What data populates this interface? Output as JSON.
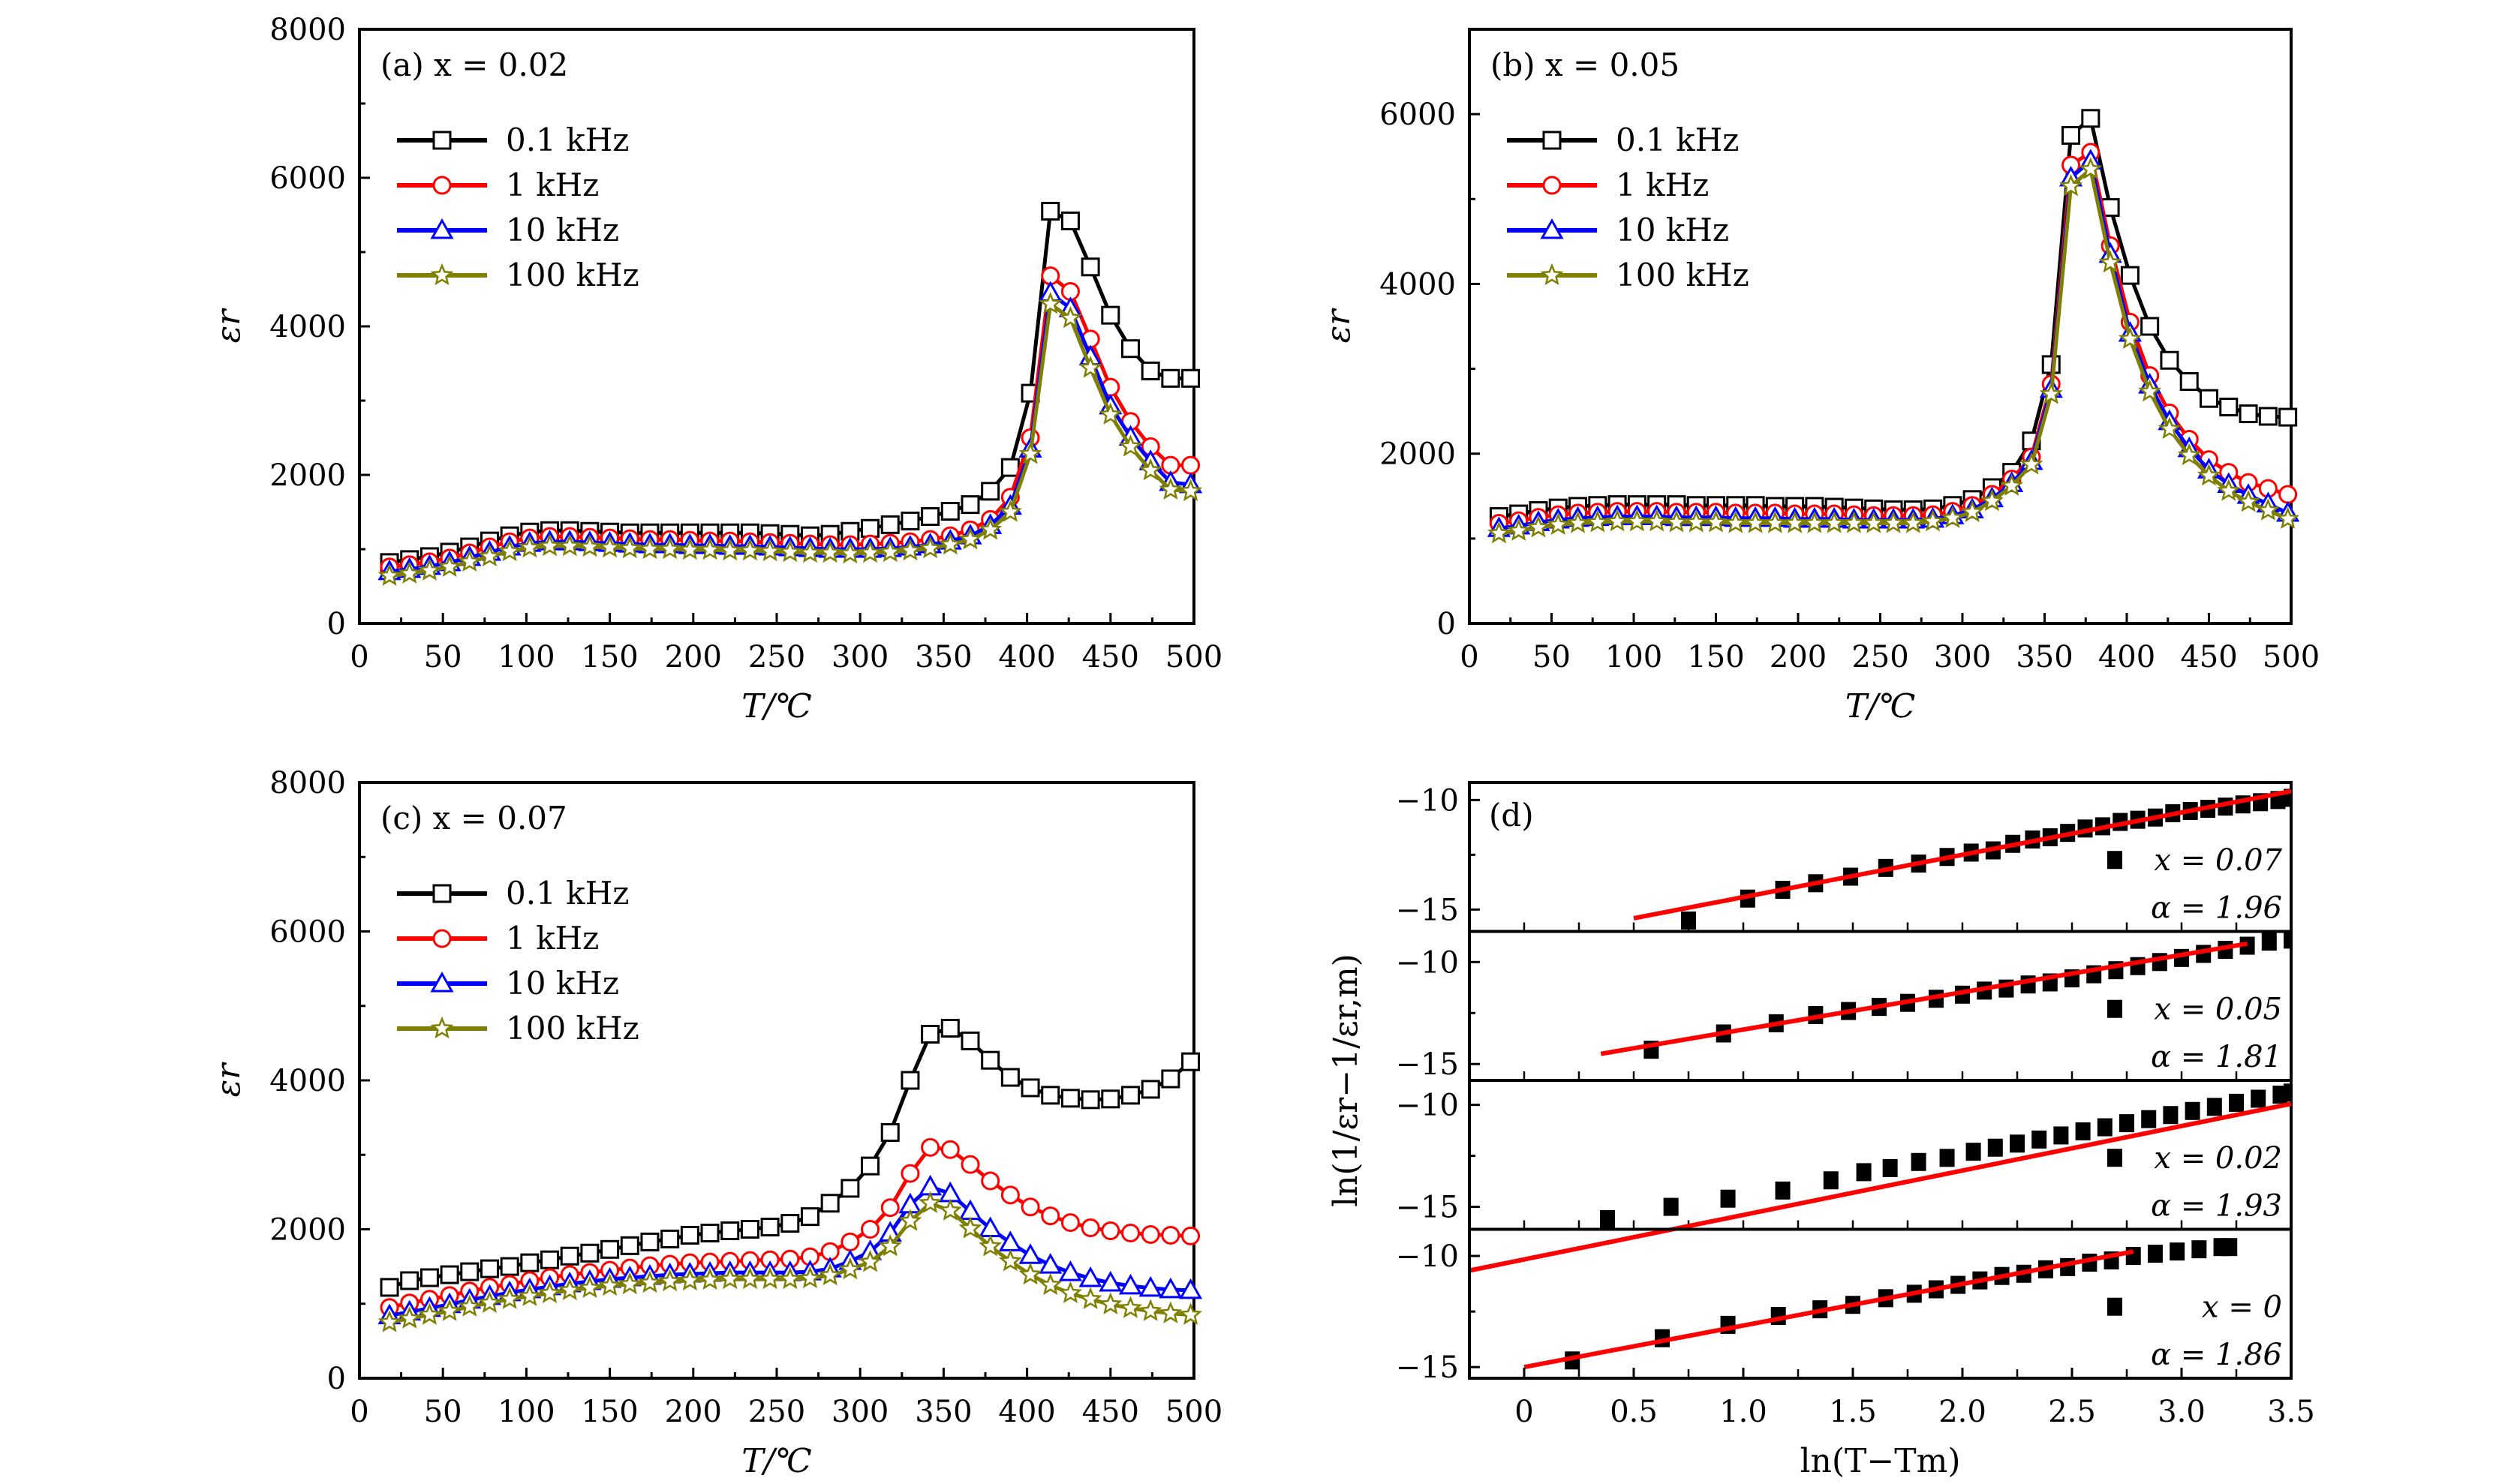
{
  "chart_data": [
    {
      "id": "a",
      "type": "line",
      "panel_label": "(a) x = 0.02",
      "xlabel": "T/℃",
      "ylabel": "εr",
      "xlim": [
        0,
        500
      ],
      "ylim": [
        0,
        8000
      ],
      "xticks": [
        0,
        50,
        100,
        150,
        200,
        250,
        300,
        350,
        400,
        450,
        500
      ],
      "yticks": [
        0,
        2000,
        4000,
        6000,
        8000
      ],
      "grid": false,
      "legend_position": "top-left",
      "x": [
        18,
        30,
        42,
        54,
        66,
        78,
        90,
        102,
        114,
        126,
        138,
        150,
        162,
        174,
        186,
        198,
        210,
        222,
        234,
        246,
        258,
        270,
        282,
        294,
        306,
        318,
        330,
        342,
        354,
        366,
        378,
        390,
        402,
        414,
        426,
        438,
        450,
        462,
        474,
        486,
        498
      ],
      "series": [
        {
          "name": "0.1 kHz",
          "color": "#000000",
          "marker": "square",
          "values": [
            820,
            860,
            900,
            960,
            1030,
            1110,
            1180,
            1230,
            1250,
            1250,
            1240,
            1230,
            1220,
            1220,
            1220,
            1220,
            1220,
            1220,
            1220,
            1210,
            1200,
            1180,
            1200,
            1240,
            1280,
            1330,
            1380,
            1440,
            1510,
            1600,
            1780,
            2100,
            3100,
            5550,
            5420,
            4800,
            4150,
            3700,
            3400,
            3300,
            3300
          ]
        },
        {
          "name": "1 kHz",
          "color": "#ff0000",
          "marker": "circle",
          "values": [
            760,
            790,
            830,
            880,
            950,
            1030,
            1100,
            1150,
            1170,
            1170,
            1160,
            1150,
            1140,
            1130,
            1130,
            1120,
            1110,
            1110,
            1100,
            1090,
            1080,
            1070,
            1060,
            1060,
            1070,
            1080,
            1100,
            1130,
            1180,
            1260,
            1400,
            1700,
            2500,
            4680,
            4470,
            3830,
            3180,
            2720,
            2380,
            2130,
            2130
          ]
        },
        {
          "name": "10 kHz",
          "color": "#0000ff",
          "marker": "triangle",
          "values": [
            700,
            730,
            770,
            820,
            890,
            960,
            1030,
            1080,
            1100,
            1100,
            1090,
            1080,
            1070,
            1060,
            1060,
            1050,
            1050,
            1040,
            1040,
            1030,
            1020,
            1010,
            1000,
            1000,
            1000,
            1010,
            1030,
            1060,
            1110,
            1180,
            1320,
            1580,
            2350,
            4450,
            4240,
            3590,
            2930,
            2510,
            2180,
            1900,
            1870
          ]
        },
        {
          "name": "100 kHz",
          "color": "#808000",
          "marker": "star",
          "values": [
            640,
            670,
            710,
            760,
            830,
            900,
            970,
            1020,
            1040,
            1040,
            1030,
            1020,
            1010,
            1000,
            1000,
            990,
            990,
            980,
            980,
            970,
            960,
            950,
            950,
            940,
            950,
            960,
            980,
            1010,
            1060,
            1130,
            1260,
            1500,
            2280,
            4300,
            4110,
            3440,
            2810,
            2380,
            2060,
            1800,
            1780
          ]
        }
      ]
    },
    {
      "id": "b",
      "type": "line",
      "panel_label": "(b) x = 0.05",
      "xlabel": "T/℃",
      "ylabel": "εr",
      "xlim": [
        0,
        500
      ],
      "ylim": [
        0,
        7000
      ],
      "xticks": [
        0,
        50,
        100,
        150,
        200,
        250,
        300,
        350,
        400,
        450,
        500
      ],
      "yticks": [
        0,
        2000,
        4000,
        6000
      ],
      "grid": false,
      "legend_position": "top-left",
      "x": [
        18,
        30,
        42,
        54,
        66,
        78,
        90,
        102,
        114,
        126,
        138,
        150,
        162,
        174,
        186,
        198,
        210,
        222,
        234,
        246,
        258,
        270,
        282,
        294,
        306,
        318,
        330,
        342,
        354,
        366,
        378,
        390,
        402,
        414,
        426,
        438,
        450,
        462,
        474,
        486,
        498
      ],
      "series": [
        {
          "name": "0.1 kHz",
          "color": "#000000",
          "marker": "square",
          "values": [
            1260,
            1290,
            1330,
            1360,
            1380,
            1390,
            1400,
            1400,
            1400,
            1400,
            1390,
            1390,
            1390,
            1390,
            1380,
            1380,
            1380,
            1370,
            1360,
            1350,
            1340,
            1340,
            1350,
            1390,
            1460,
            1600,
            1780,
            2150,
            3050,
            5750,
            5950,
            4900,
            4100,
            3500,
            3100,
            2850,
            2650,
            2550,
            2470,
            2440,
            2430
          ]
        },
        {
          "name": "1 kHz",
          "color": "#ff0000",
          "marker": "circle",
          "values": [
            1180,
            1210,
            1250,
            1280,
            1300,
            1310,
            1320,
            1320,
            1320,
            1310,
            1310,
            1310,
            1300,
            1300,
            1300,
            1290,
            1290,
            1290,
            1280,
            1270,
            1270,
            1270,
            1280,
            1320,
            1390,
            1520,
            1700,
            1960,
            2820,
            5400,
            5550,
            4450,
            3550,
            2920,
            2480,
            2170,
            1930,
            1780,
            1660,
            1590,
            1520
          ]
        },
        {
          "name": "10 kHz",
          "color": "#0000ff",
          "marker": "triangle",
          "values": [
            1120,
            1150,
            1190,
            1220,
            1240,
            1250,
            1260,
            1260,
            1260,
            1250,
            1250,
            1250,
            1240,
            1240,
            1240,
            1230,
            1230,
            1230,
            1220,
            1220,
            1220,
            1220,
            1230,
            1270,
            1340,
            1470,
            1650,
            1910,
            2760,
            5250,
            5450,
            4350,
            3420,
            2810,
            2380,
            2060,
            1810,
            1640,
            1510,
            1410,
            1300
          ]
        },
        {
          "name": "100 kHz",
          "color": "#808000",
          "marker": "star",
          "values": [
            1060,
            1090,
            1130,
            1160,
            1180,
            1190,
            1200,
            1200,
            1200,
            1190,
            1190,
            1190,
            1180,
            1180,
            1180,
            1180,
            1180,
            1180,
            1180,
            1180,
            1180,
            1180,
            1200,
            1240,
            1310,
            1440,
            1620,
            1870,
            2700,
            5150,
            5350,
            4250,
            3350,
            2730,
            2290,
            1980,
            1740,
            1560,
            1430,
            1330,
            1230
          ]
        }
      ]
    },
    {
      "id": "c",
      "type": "line",
      "panel_label": "(c) x = 0.07",
      "xlabel": "T/℃",
      "ylabel": "εr",
      "xlim": [
        0,
        500
      ],
      "ylim": [
        0,
        8000
      ],
      "xticks": [
        0,
        50,
        100,
        150,
        200,
        250,
        300,
        350,
        400,
        450,
        500
      ],
      "yticks": [
        0,
        2000,
        4000,
        6000,
        8000
      ],
      "grid": false,
      "legend_position": "top-left",
      "x": [
        18,
        30,
        42,
        54,
        66,
        78,
        90,
        102,
        114,
        126,
        138,
        150,
        162,
        174,
        186,
        198,
        210,
        222,
        234,
        246,
        258,
        270,
        282,
        294,
        306,
        318,
        330,
        342,
        354,
        366,
        378,
        390,
        402,
        414,
        426,
        438,
        450,
        462,
        474,
        486,
        498
      ],
      "series": [
        {
          "name": "0.1 kHz",
          "color": "#000000",
          "marker": "square",
          "values": [
            1220,
            1310,
            1350,
            1390,
            1430,
            1470,
            1500,
            1550,
            1590,
            1640,
            1680,
            1730,
            1780,
            1830,
            1870,
            1920,
            1950,
            1980,
            2000,
            2030,
            2080,
            2170,
            2350,
            2550,
            2850,
            3300,
            4000,
            4620,
            4700,
            4530,
            4270,
            4040,
            3900,
            3800,
            3760,
            3740,
            3750,
            3800,
            3880,
            4020,
            4250
          ]
        },
        {
          "name": "1 kHz",
          "color": "#ff0000",
          "marker": "circle",
          "values": [
            950,
            1010,
            1060,
            1110,
            1170,
            1220,
            1260,
            1310,
            1350,
            1390,
            1420,
            1450,
            1480,
            1510,
            1530,
            1550,
            1560,
            1570,
            1580,
            1590,
            1600,
            1630,
            1700,
            1830,
            2000,
            2290,
            2750,
            3100,
            3070,
            2870,
            2650,
            2460,
            2300,
            2180,
            2090,
            2020,
            1980,
            1950,
            1930,
            1920,
            1910
          ]
        },
        {
          "name": "10 kHz",
          "color": "#0000ff",
          "marker": "triangle",
          "values": [
            840,
            890,
            940,
            990,
            1050,
            1100,
            1150,
            1190,
            1230,
            1270,
            1300,
            1330,
            1350,
            1370,
            1390,
            1400,
            1410,
            1420,
            1420,
            1420,
            1420,
            1430,
            1470,
            1570,
            1700,
            1950,
            2330,
            2570,
            2480,
            2240,
            2010,
            1820,
            1650,
            1520,
            1420,
            1340,
            1280,
            1240,
            1210,
            1190,
            1180
          ]
        },
        {
          "name": "100 kHz",
          "color": "#808000",
          "marker": "star",
          "values": [
            750,
            800,
            850,
            900,
            960,
            1010,
            1060,
            1100,
            1140,
            1180,
            1210,
            1240,
            1260,
            1280,
            1300,
            1310,
            1320,
            1330,
            1330,
            1330,
            1330,
            1340,
            1380,
            1460,
            1560,
            1770,
            2110,
            2350,
            2250,
            2010,
            1770,
            1570,
            1390,
            1250,
            1140,
            1060,
            990,
            940,
            900,
            870,
            850
          ]
        }
      ]
    },
    {
      "id": "d",
      "type": "scatter",
      "panel_label": "(d)",
      "xlabel": "ln(T−Tm)",
      "ylabel": "ln(1/εr−1/εr,m)",
      "xlim": [
        -0.25,
        3.5
      ],
      "xticks": [
        0,
        0.5,
        1.0,
        1.5,
        2.0,
        2.5,
        3.0,
        3.5
      ],
      "xtick_labels": [
        "0",
        "0.5",
        "1.0",
        "1.5",
        "2.0",
        "2.5",
        "3.0",
        "3.5"
      ],
      "grid": false,
      "fit_color": "#ff0000",
      "marker_color": "#000000",
      "subplots": [
        {
          "label_x": "x = 0.07",
          "label_alpha": "α = 1.96",
          "ylim": [
            -16.0,
            -9.2
          ],
          "yticks": [
            -10,
            -15
          ],
          "points_x": [
            0.75,
            1.02,
            1.18,
            1.33,
            1.49,
            1.65,
            1.8,
            1.93,
            2.04,
            2.14,
            2.23,
            2.32,
            2.4,
            2.48,
            2.56,
            2.64,
            2.72,
            2.8,
            2.88,
            2.96,
            3.04,
            3.12,
            3.2,
            3.28,
            3.36,
            3.44,
            3.5
          ],
          "points_y": [
            -15.5,
            -14.5,
            -14.1,
            -13.8,
            -13.5,
            -13.1,
            -12.9,
            -12.6,
            -12.4,
            -12.3,
            -12.0,
            -11.8,
            -11.7,
            -11.5,
            -11.3,
            -11.2,
            -11.0,
            -10.9,
            -10.8,
            -10.6,
            -10.5,
            -10.4,
            -10.3,
            -10.2,
            -10.1,
            -10.0,
            -9.9
          ],
          "fit_x": [
            0.5,
            3.5
          ],
          "fit_y": [
            -15.4,
            -9.6
          ]
        },
        {
          "label_x": "x = 0.05",
          "label_alpha": "α = 1.81",
          "ylim": [
            -15.8,
            -8.5
          ],
          "yticks": [
            -10,
            -15
          ],
          "points_x": [
            0.58,
            0.91,
            1.15,
            1.33,
            1.48,
            1.62,
            1.75,
            1.88,
            2.0,
            2.1,
            2.2,
            2.3,
            2.4,
            2.5,
            2.6,
            2.7,
            2.8,
            2.9,
            3.0,
            3.1,
            3.2,
            3.3,
            3.4,
            3.5
          ],
          "points_y": [
            -14.3,
            -13.5,
            -13.0,
            -12.6,
            -12.4,
            -12.2,
            -12.0,
            -11.8,
            -11.6,
            -11.4,
            -11.3,
            -11.1,
            -11.0,
            -10.8,
            -10.6,
            -10.4,
            -10.2,
            -10.0,
            -9.8,
            -9.6,
            -9.4,
            -9.2,
            -9.0,
            -8.9
          ],
          "fit_x": [
            0.35,
            3.3
          ],
          "fit_y": [
            -14.5,
            -9.1
          ]
        },
        {
          "label_x": "x = 0.02",
          "label_alpha": "α = 1.93",
          "ylim": [
            -16.1,
            -8.8
          ],
          "yticks": [
            -10,
            -15
          ],
          "points_x": [
            0.38,
            0.67,
            0.93,
            1.18,
            1.4,
            1.55,
            1.67,
            1.8,
            1.93,
            2.05,
            2.15,
            2.25,
            2.35,
            2.45,
            2.55,
            2.65,
            2.75,
            2.85,
            2.95,
            3.05,
            3.15,
            3.25,
            3.35,
            3.45,
            3.5
          ],
          "points_y": [
            -15.6,
            -15.0,
            -14.6,
            -14.2,
            -13.7,
            -13.3,
            -13.1,
            -12.8,
            -12.6,
            -12.3,
            -12.1,
            -11.9,
            -11.7,
            -11.5,
            -11.3,
            -11.1,
            -10.9,
            -10.7,
            -10.5,
            -10.3,
            -10.1,
            -9.9,
            -9.7,
            -9.5,
            -9.4
          ]
        },
        {
          "label_x": "x = 0",
          "label_alpha": "α = 1.86",
          "ylim": [
            -15.5,
            -8.8
          ],
          "yticks": [
            -10,
            -15
          ],
          "points_x": [
            0.22,
            0.63,
            0.93,
            1.16,
            1.35,
            1.5,
            1.65,
            1.78,
            1.88,
            1.98,
            2.08,
            2.18,
            2.28,
            2.38,
            2.48,
            2.58,
            2.68,
            2.78,
            2.88,
            2.98,
            3.08,
            3.18,
            3.22
          ],
          "points_y": [
            -14.7,
            -13.7,
            -13.1,
            -12.7,
            -12.4,
            -12.2,
            -11.9,
            -11.7,
            -11.5,
            -11.3,
            -11.1,
            -10.9,
            -10.8,
            -10.6,
            -10.5,
            -10.3,
            -10.2,
            -10.0,
            -9.9,
            -9.8,
            -9.7,
            -9.6,
            -9.6
          ],
          "fit_x": [
            0.0,
            2.78
          ],
          "fit_y": [
            -15.0,
            -9.8
          ]
        }
      ]
    }
  ],
  "panel_d_fit_extra": {
    "x_start": -0.25,
    "y_start": -8.95,
    "x_end": 3.5,
    "y_end": -9.85
  }
}
